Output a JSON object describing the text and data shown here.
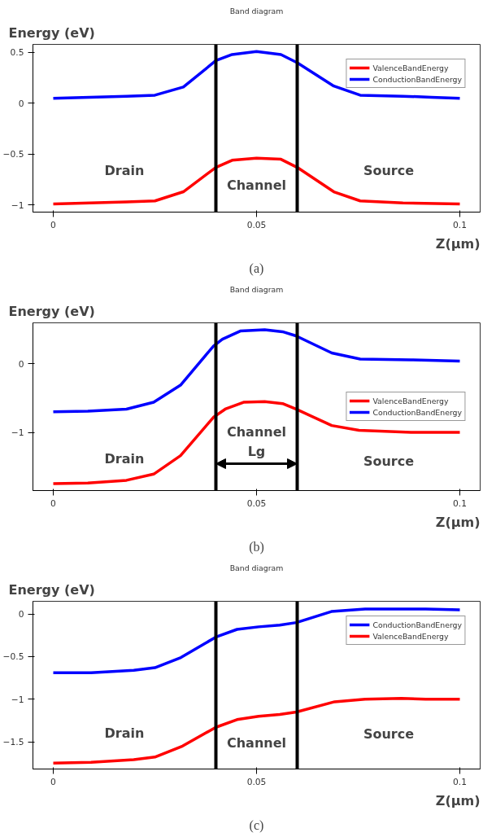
{
  "chart_data": [
    {
      "type": "line",
      "title": "Band diagram",
      "xlabel": "Z(µm)",
      "ylabel": "Energy (eV)",
      "legend": "top right",
      "grid": false,
      "marker": "none",
      "line_style": "solid",
      "xlim": [
        -0.005,
        0.105
      ],
      "ylim": [
        -1.07,
        0.58
      ],
      "xticks": [
        0,
        0.05,
        0.1
      ],
      "yticks": [
        -1,
        -0.5,
        0,
        0.5
      ],
      "series": [
        {
          "name": "ValenceBandEnergy",
          "color": "#ff0000",
          "x": [
            0,
            0.018,
            0.025,
            0.032,
            0.04,
            0.044,
            0.05,
            0.056,
            0.06,
            0.069,
            0.0755,
            0.086,
            0.1
          ],
          "values": [
            -0.99,
            -0.97,
            -0.96,
            -0.87,
            -0.63,
            -0.56,
            -0.54,
            -0.55,
            -0.63,
            -0.87,
            -0.96,
            -0.98,
            -0.99
          ]
        },
        {
          "name": "ConductionBandEnergy",
          "color": "#0000ff",
          "x": [
            0,
            0.018,
            0.025,
            0.032,
            0.04,
            0.044,
            0.05,
            0.056,
            0.06,
            0.069,
            0.0755,
            0.086,
            0.093,
            0.1
          ],
          "values": [
            0.05,
            0.07,
            0.08,
            0.16,
            0.42,
            0.48,
            0.51,
            0.48,
            0.4,
            0.17,
            0.08,
            0.07,
            0.06,
            0.05
          ]
        }
      ],
      "ref_lines": [
        {
          "axis": "x",
          "value": 0.04,
          "color": "#000000"
        },
        {
          "axis": "x",
          "value": 0.06,
          "color": "#000000"
        }
      ],
      "annotations": [
        "Drain",
        "Channel",
        "Source",
        "(a)"
      ]
    },
    {
      "type": "line",
      "title": "Band diagram",
      "xlabel": "Z(µm)",
      "ylabel": "Energy (eV)",
      "legend": "right",
      "grid": false,
      "marker": "none",
      "line_style": "solid",
      "xlim": [
        -0.005,
        0.105
      ],
      "ylim": [
        -1.85,
        0.6
      ],
      "xticks": [
        0,
        0.05,
        0.1
      ],
      "yticks": [
        -1,
        0
      ],
      "series": [
        {
          "name": "ValenceBandEnergy",
          "color": "#ff0000",
          "x": [
            0,
            0.0085,
            0.018,
            0.0247,
            0.0313,
            0.0394,
            0.0423,
            0.0468,
            0.052,
            0.0564,
            0.0597,
            0.0685,
            0.0752,
            0.088,
            0.1
          ],
          "values": [
            -1.75,
            -1.74,
            -1.7,
            -1.61,
            -1.34,
            -0.78,
            -0.66,
            -0.56,
            -0.55,
            -0.58,
            -0.66,
            -0.9,
            -0.97,
            -1.0,
            -1.0
          ]
        },
        {
          "name": "ConductionBandEnergy",
          "color": "#0000ff",
          "x": [
            0,
            0.0085,
            0.018,
            0.0247,
            0.0313,
            0.0394,
            0.0416,
            0.046,
            0.052,
            0.0564,
            0.0597,
            0.0685,
            0.0755,
            0.088,
            0.1
          ],
          "values": [
            -0.7,
            -0.69,
            -0.66,
            -0.56,
            -0.31,
            0.26,
            0.36,
            0.48,
            0.5,
            0.47,
            0.41,
            0.16,
            0.07,
            0.06,
            0.04
          ]
        }
      ],
      "ref_lines": [
        {
          "axis": "x",
          "value": 0.04,
          "color": "#000000"
        },
        {
          "axis": "x",
          "value": 0.06,
          "color": "#000000"
        }
      ],
      "annotations": [
        "Drain",
        "Channel",
        "Source",
        "Lg",
        "(b)"
      ]
    },
    {
      "type": "line",
      "title": "Band diagram",
      "xlabel": "Z(µm)",
      "ylabel": "Energy (eV)",
      "legend": "top right",
      "grid": false,
      "marker": "none",
      "line_style": "solid",
      "xlim": [
        -0.005,
        0.105
      ],
      "ylim": [
        -1.82,
        0.15
      ],
      "xticks": [
        0,
        0.05,
        0.1
      ],
      "yticks": [
        -1.5,
        -1,
        -0.5,
        0
      ],
      "series": [
        {
          "name": "ConductionBandEnergy",
          "color": "#0000ff",
          "x": [
            0,
            0.0093,
            0.0198,
            0.025,
            0.0314,
            0.04,
            0.0452,
            0.0505,
            0.0557,
            0.0598,
            0.0684,
            0.0767,
            0.0856,
            0.0916,
            0.1
          ],
          "values": [
            -0.69,
            -0.69,
            -0.66,
            -0.63,
            -0.51,
            -0.27,
            -0.18,
            -0.15,
            -0.13,
            -0.1,
            0.03,
            0.06,
            0.06,
            0.06,
            0.05
          ]
        },
        {
          "name": "ValenceBandEnergy",
          "color": "#ff0000",
          "x": [
            0,
            0.0093,
            0.0198,
            0.025,
            0.0318,
            0.04,
            0.0452,
            0.0505,
            0.0557,
            0.0598,
            0.0692,
            0.0767,
            0.0856,
            0.0916,
            0.1
          ],
          "values": [
            -1.75,
            -1.74,
            -1.71,
            -1.68,
            -1.55,
            -1.33,
            -1.24,
            -1.2,
            -1.18,
            -1.15,
            -1.03,
            -1.0,
            -0.99,
            -1.0,
            -1.0
          ]
        }
      ],
      "ref_lines": [
        {
          "axis": "x",
          "value": 0.04,
          "color": "#000000"
        },
        {
          "axis": "x",
          "value": 0.06,
          "color": "#000000"
        }
      ],
      "annotations": [
        "Drain",
        "Channel",
        "Source",
        "(c)"
      ]
    }
  ]
}
